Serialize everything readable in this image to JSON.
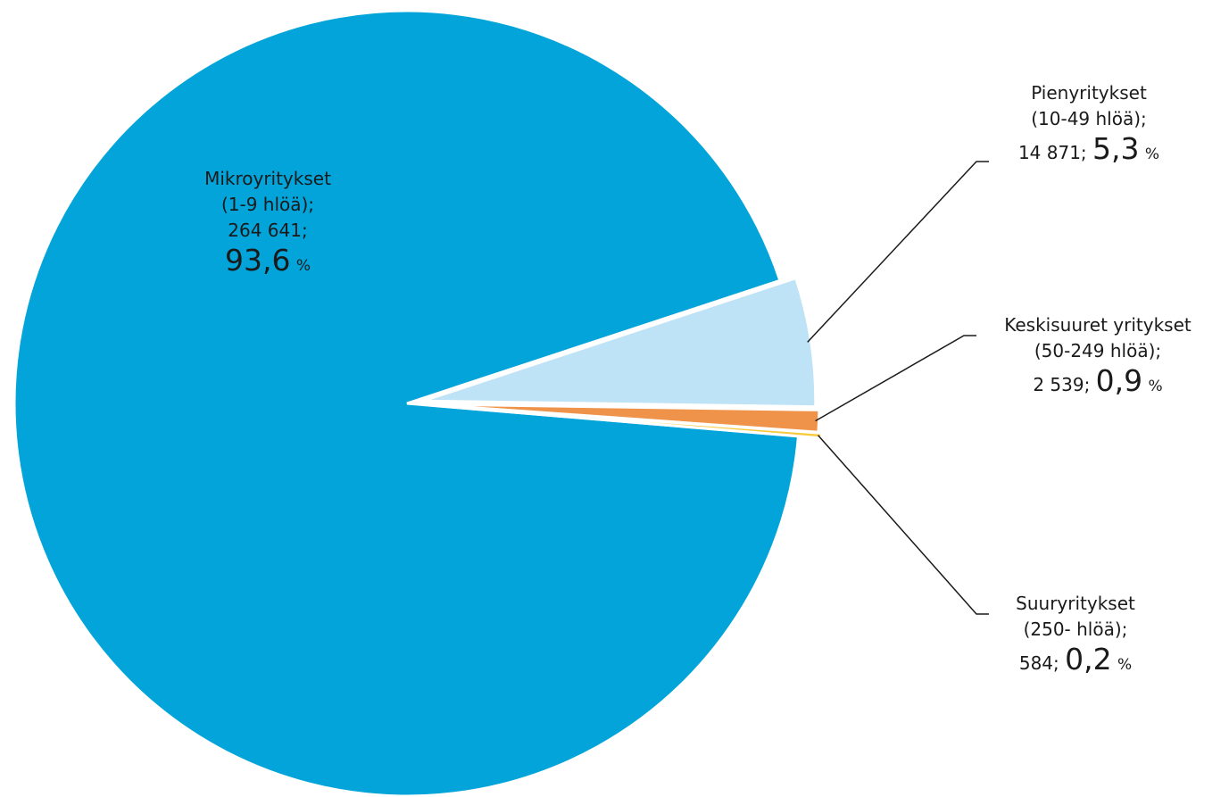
{
  "chart_data": {
    "type": "pie",
    "slices": [
      {
        "name": "Mikroyritykset",
        "sub": "(1-9 hlöä);",
        "count": "264 641;",
        "value": 93.6,
        "pct": "93,6",
        "unit": "%",
        "color": "#02a4da"
      },
      {
        "name": "Pienyritykset",
        "sub": "(10-49 hlöä);",
        "count": "14 871;",
        "value": 5.3,
        "pct": "5,3",
        "unit": "%",
        "color": "#bfe3f6"
      },
      {
        "name": "Keskisuuret yritykset",
        "sub": "(50-249 hlöä);",
        "count": "2 539;",
        "value": 0.9,
        "pct": "0,9",
        "unit": "%",
        "color": "#f0934a"
      },
      {
        "name": "Suuryritykset",
        "sub": "(250- hlöä);",
        "count": "584;",
        "value": 0.2,
        "pct": "0,2",
        "unit": "%",
        "color": "#f9c93c"
      }
    ],
    "legend": "none"
  }
}
